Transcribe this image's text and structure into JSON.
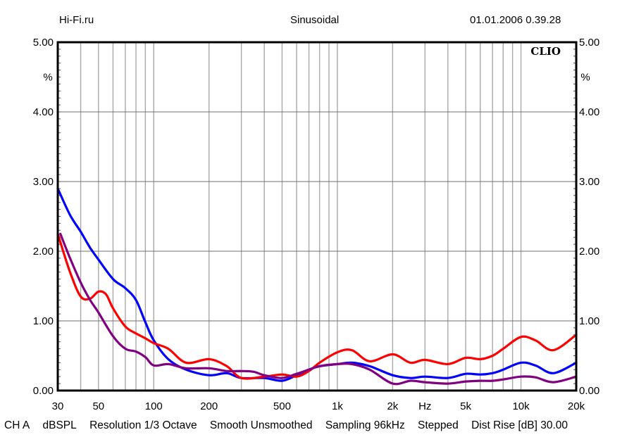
{
  "header": {
    "left": "Hi-Fi.ru",
    "center": "Sinusoidal",
    "right": "01.01.2006 0.39.28"
  },
  "brand": "CLIO",
  "footer": {
    "channel": "CH A",
    "unit": "dBSPL",
    "resolution": "Resolution 1/3 Octave",
    "smooth": "Smooth Unsmoothed",
    "sampling": "Sampling 96kHz",
    "mode": "Stepped",
    "dist_rise": "Dist Rise [dB] 30.00"
  },
  "colors": {
    "red": "#ff0000",
    "blue": "#0000ff",
    "purple": "#800080"
  },
  "chart_data": {
    "type": "line",
    "title": "Sinusoidal",
    "xscale": "log",
    "xlim": [
      30,
      20000
    ],
    "ylim": [
      0,
      5
    ],
    "xlabel": "Hz",
    "ylabel": "%",
    "y_unit_label": "%",
    "grid": true,
    "x_ticks": [
      {
        "value": 30,
        "label": "30"
      },
      {
        "value": 50,
        "label": "50"
      },
      {
        "value": 100,
        "label": "100"
      },
      {
        "value": 200,
        "label": "200"
      },
      {
        "value": 500,
        "label": "500"
      },
      {
        "value": 1000,
        "label": "1k"
      },
      {
        "value": 2000,
        "label": "2k"
      },
      {
        "value": 3000,
        "label": "Hz"
      },
      {
        "value": 5000,
        "label": "5k"
      },
      {
        "value": 10000,
        "label": "10k"
      },
      {
        "value": 20000,
        "label": "20k"
      }
    ],
    "y_ticks": [
      {
        "value": 0,
        "label": "0.00"
      },
      {
        "value": 1,
        "label": "1.00"
      },
      {
        "value": 2,
        "label": "2.00"
      },
      {
        "value": 3,
        "label": "3.00"
      },
      {
        "value": 4,
        "label": "4.00"
      },
      {
        "value": 5,
        "label": "5.00"
      }
    ],
    "series": [
      {
        "name": "blue",
        "color": "#0000ff",
        "x": [
          30,
          35,
          40,
          45,
          50,
          60,
          70,
          80,
          90,
          100,
          120,
          150,
          200,
          250,
          300,
          400,
          500,
          600,
          700,
          800,
          1000,
          1200,
          1500,
          2000,
          2500,
          3000,
          4000,
          5000,
          6000,
          7000,
          8000,
          10000,
          12000,
          15000,
          20000
        ],
        "y": [
          2.9,
          2.52,
          2.28,
          2.05,
          1.88,
          1.6,
          1.47,
          1.3,
          0.98,
          0.72,
          0.45,
          0.3,
          0.22,
          0.25,
          0.18,
          0.18,
          0.14,
          0.22,
          0.3,
          0.35,
          0.38,
          0.4,
          0.35,
          0.22,
          0.18,
          0.2,
          0.18,
          0.24,
          0.23,
          0.25,
          0.3,
          0.4,
          0.36,
          0.25,
          0.4
        ]
      },
      {
        "name": "red",
        "color": "#ff0000",
        "x": [
          30,
          35,
          40,
          45,
          50,
          55,
          60,
          70,
          80,
          90,
          100,
          120,
          150,
          200,
          250,
          300,
          400,
          500,
          600,
          700,
          800,
          1000,
          1200,
          1500,
          2000,
          2500,
          3000,
          4000,
          5000,
          6000,
          7000,
          8000,
          10000,
          12000,
          15000,
          20000
        ],
        "y": [
          2.25,
          1.7,
          1.35,
          1.32,
          1.42,
          1.38,
          1.18,
          0.92,
          0.82,
          0.75,
          0.68,
          0.6,
          0.4,
          0.45,
          0.35,
          0.18,
          0.2,
          0.23,
          0.2,
          0.28,
          0.4,
          0.55,
          0.58,
          0.42,
          0.52,
          0.4,
          0.44,
          0.38,
          0.47,
          0.45,
          0.5,
          0.6,
          0.77,
          0.72,
          0.58,
          0.8
        ]
      },
      {
        "name": "purple",
        "color": "#800080",
        "x": [
          31,
          35,
          40,
          45,
          50,
          60,
          70,
          80,
          90,
          100,
          120,
          150,
          200,
          250,
          300,
          350,
          400,
          500,
          600,
          700,
          800,
          1000,
          1200,
          1500,
          2000,
          2500,
          3000,
          4000,
          5000,
          6000,
          7000,
          8000,
          10000,
          12000,
          15000,
          20000
        ],
        "y": [
          2.25,
          1.9,
          1.55,
          1.3,
          1.12,
          0.78,
          0.6,
          0.56,
          0.48,
          0.36,
          0.38,
          0.32,
          0.32,
          0.28,
          0.28,
          0.27,
          0.22,
          0.18,
          0.24,
          0.3,
          0.35,
          0.38,
          0.38,
          0.3,
          0.1,
          0.14,
          0.12,
          0.1,
          0.13,
          0.14,
          0.14,
          0.16,
          0.2,
          0.19,
          0.12,
          0.2
        ]
      }
    ]
  }
}
